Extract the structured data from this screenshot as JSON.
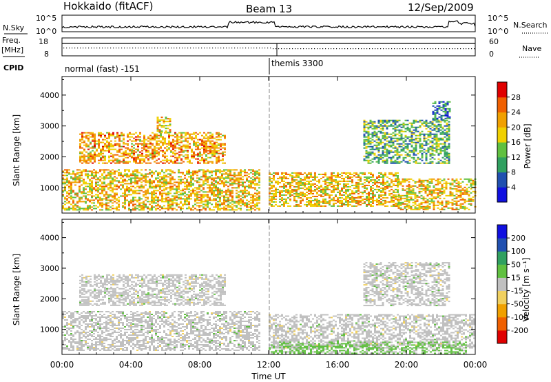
{
  "header": {
    "station": "Hokkaido (fitACF)",
    "beam": "Beam 13",
    "date": "12/Sep/2009"
  },
  "labels": {
    "nsky": "N.Sky",
    "nsearch": "N.Search",
    "freq_line1": "Freq.",
    "freq_line2": "[MHz]",
    "nave": "Nave",
    "cpid": "CPID",
    "cpid_1": "normal (fast) -151",
    "cpid_2": "themis 3300",
    "yaxis": "Slant Range [km]",
    "xaxis": "Time UT",
    "power_bar": "Power [dB]",
    "velocity_bar": "Velocity [m s⁻¹]"
  },
  "ticks": {
    "noise_left": [
      "10^5",
      "10^0"
    ],
    "noise_right": [
      "10^5",
      "10^0"
    ],
    "freq_left": [
      "18",
      "8"
    ],
    "nave_right": [
      "60",
      "0"
    ]
  },
  "colors": {
    "power": [
      "#1010e0",
      "#2050b0",
      "#30a060",
      "#60c040",
      "#f0d000",
      "#f0a000",
      "#f06000",
      "#e00000"
    ],
    "velocity": [
      "#e00000",
      "#f06000",
      "#f0a000",
      "#f0d060",
      "#c0c0c0",
      "#60c040",
      "#30a060",
      "#2050b0",
      "#1010e0"
    ]
  },
  "chart_data": [
    {
      "type": "heatmap",
      "panel": "power",
      "y_label": "Slant Range [km]",
      "x_label": "Time UT",
      "x_ticks": [
        "00:00",
        "04:00",
        "08:00",
        "12:00",
        "16:00",
        "20:00",
        "00:00"
      ],
      "x_range_hours": [
        0,
        24
      ],
      "y_ticks": [
        1000,
        2000,
        3000,
        4000
      ],
      "y_range_km": [
        180,
        4600
      ],
      "colorbar": {
        "label": "Power [dB]",
        "ticks": [
          "4",
          "8",
          "12",
          "16",
          "20",
          "24",
          "28"
        ],
        "range": [
          0,
          32
        ]
      },
      "regions": [
        {
          "t0": 0.0,
          "t1": 11.5,
          "r0": 300,
          "r1": 1600,
          "mean": 20
        },
        {
          "t0": 1.0,
          "t1": 9.5,
          "r0": 1800,
          "r1": 2800,
          "mean": 22
        },
        {
          "t0": 5.5,
          "t1": 6.3,
          "r0": 2800,
          "r1": 3300,
          "mean": 20
        },
        {
          "t0": 12.0,
          "t1": 19.5,
          "r0": 400,
          "r1": 1500,
          "mean": 20
        },
        {
          "t0": 19.5,
          "t1": 24.0,
          "r0": 300,
          "r1": 1300,
          "mean": 20
        },
        {
          "t0": 17.5,
          "t1": 22.5,
          "r0": 1800,
          "r1": 3200,
          "mean": 12
        },
        {
          "t0": 21.5,
          "t1": 22.5,
          "r0": 3200,
          "r1": 3800,
          "mean": 8
        }
      ]
    },
    {
      "type": "heatmap",
      "panel": "velocity",
      "y_label": "Slant Range [km]",
      "x_label": "Time UT",
      "x_ticks": [
        "00:00",
        "04:00",
        "08:00",
        "12:00",
        "16:00",
        "20:00",
        "00:00"
      ],
      "x_range_hours": [
        0,
        24
      ],
      "y_ticks": [
        1000,
        2000,
        3000,
        4000
      ],
      "y_range_km": [
        180,
        4600
      ],
      "colorbar": {
        "label": "Velocity [m s⁻¹]",
        "ticks": [
          "-200",
          "-100",
          "-50",
          "-15",
          "15",
          "50",
          "100",
          "200"
        ],
        "range": [
          -250,
          250
        ]
      },
      "regions": [
        {
          "t0": 0.0,
          "t1": 11.5,
          "r0": 300,
          "r1": 1600,
          "mean": 0
        },
        {
          "t0": 1.0,
          "t1": 9.5,
          "r0": 1800,
          "r1": 2800,
          "mean": 0
        },
        {
          "t0": 12.0,
          "t1": 24.0,
          "r0": 400,
          "r1": 1500,
          "mean": 0
        },
        {
          "t0": 12.0,
          "t1": 23.5,
          "r0": 200,
          "r1": 600,
          "mean": 40
        },
        {
          "t0": 17.5,
          "t1": 22.5,
          "r0": 1800,
          "r1": 3200,
          "mean": 0
        }
      ]
    }
  ]
}
